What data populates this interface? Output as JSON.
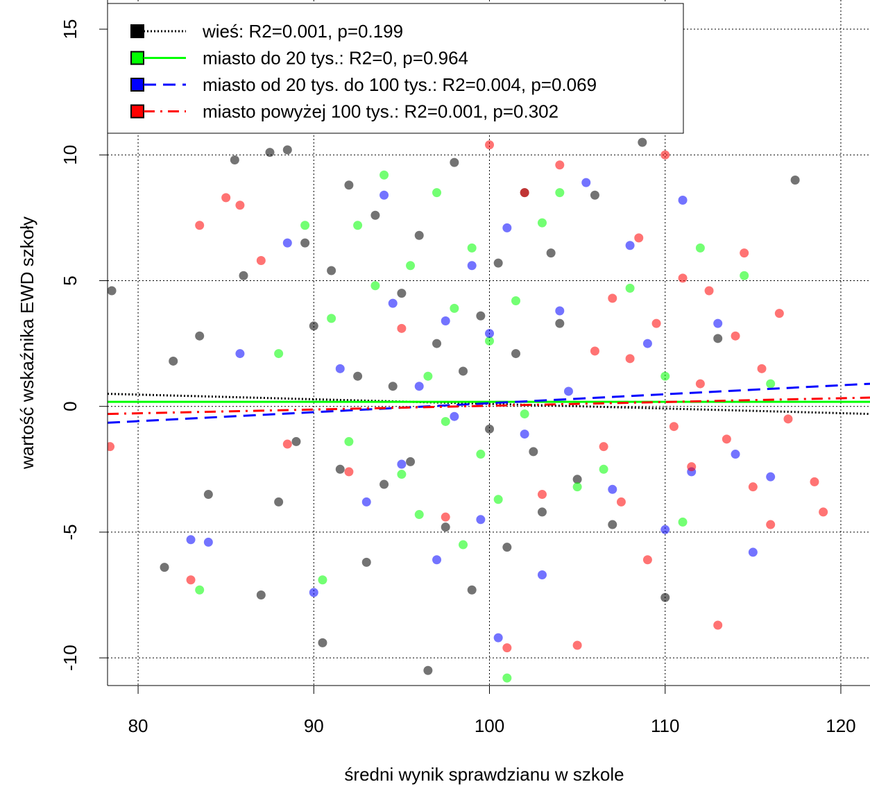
{
  "chart_data": {
    "type": "scatter",
    "xlabel": "średni wynik sprawdzianu w szkole",
    "ylabel": "wartość wskaźnika EWD szkoły",
    "xlim": [
      78.26,
      121.66
    ],
    "ylim": [
      -11.1,
      16.16
    ],
    "xticks": [
      80,
      90,
      100,
      110,
      120
    ],
    "yticks": [
      -10,
      -5,
      0,
      5,
      10,
      15
    ],
    "grid": true,
    "legend": "top-left",
    "series": [
      {
        "name": "wieś: R2=0.001, p=0.199",
        "color": "#000000",
        "line_style": "dotted",
        "x": [
          78.5,
          81.5,
          82,
          83.5,
          84,
          85.5,
          86,
          87,
          87.5,
          88,
          88.5,
          89,
          89.5,
          90,
          90.5,
          91,
          91.5,
          92,
          92.5,
          93,
          93.5,
          94,
          94.5,
          95,
          95.5,
          96,
          96.5,
          97,
          97.5,
          98,
          98.5,
          99,
          99.5,
          100,
          100.5,
          101,
          101.5,
          102,
          102.5,
          103,
          103.5,
          104,
          105,
          106,
          107,
          108.7,
          110,
          113,
          117.4
        ],
        "values": [
          4.6,
          -6.4,
          1.8,
          2.8,
          -3.5,
          9.8,
          5.2,
          -7.5,
          10.1,
          -3.8,
          10.2,
          -1.4,
          6.5,
          3.2,
          -9.4,
          5.4,
          -2.5,
          8.8,
          1.2,
          -6.2,
          7.6,
          -3.1,
          0.8,
          4.5,
          -2.2,
          6.8,
          -10.5,
          2.5,
          -4.8,
          9.7,
          1.4,
          -7.3,
          3.6,
          -0.9,
          5.7,
          -5.6,
          2.1,
          8.5,
          -1.8,
          -4.2,
          6.1,
          3.3,
          -2.9,
          8.4,
          -4.7,
          10.5,
          -7.6,
          2.7,
          9.0
        ],
        "fit": {
          "x": [
            78.26,
            121.66
          ],
          "y": [
            0.5,
            -0.3
          ]
        }
      },
      {
        "name": "miasto do 20 tys.: R2=0, p=0.964",
        "color": "#00ff00",
        "line_style": "solid",
        "x": [
          83.5,
          88,
          89.5,
          90.5,
          91,
          92,
          92.5,
          93.5,
          94,
          95,
          95.5,
          96,
          96.5,
          97,
          97.5,
          98,
          98.5,
          99,
          99.5,
          100,
          100.5,
          101,
          101.5,
          102,
          103,
          104,
          105,
          106.5,
          108,
          110,
          111,
          112,
          114.5,
          116
        ],
        "values": [
          -7.3,
          2.1,
          7.2,
          -6.9,
          3.5,
          -1.4,
          7.2,
          4.8,
          9.2,
          -2.7,
          5.6,
          -4.3,
          1.2,
          8.5,
          -0.6,
          3.9,
          -5.5,
          6.3,
          -1.9,
          2.6,
          -3.7,
          -10.8,
          4.2,
          -0.3,
          7.3,
          8.5,
          -3.2,
          -2.5,
          4.7,
          1.2,
          -4.6,
          6.3,
          5.2,
          0.9
        ],
        "fit": {
          "x": [
            78.26,
            121.66
          ],
          "y": [
            0.18,
            0.18
          ]
        }
      },
      {
        "name": "miasto od 20 tys. do 100 tys.: R2=0.004, p=0.069",
        "color": "#0000ff",
        "line_style": "dashed",
        "x": [
          83,
          84,
          85.8,
          88.5,
          90,
          91.5,
          93,
          94,
          94.5,
          95,
          96,
          97,
          97.5,
          98,
          99,
          99.5,
          100,
          100.5,
          101,
          102,
          103,
          104,
          104.5,
          105.5,
          107,
          108,
          109,
          110,
          111,
          111.5,
          113,
          114,
          115,
          116
        ],
        "values": [
          -5.3,
          -5.4,
          2.1,
          6.5,
          -7.4,
          1.5,
          -3.8,
          8.4,
          4.1,
          -2.3,
          0.8,
          -6.1,
          3.4,
          -0.4,
          5.6,
          -4.5,
          2.9,
          -9.2,
          7.1,
          -1.1,
          -6.7,
          3.8,
          0.6,
          8.9,
          -3.3,
          6.4,
          2.5,
          -4.9,
          8.2,
          -2.6,
          3.3,
          -1.9,
          -5.8,
          -2.8
        ],
        "fit": {
          "x": [
            78.26,
            121.66
          ],
          "y": [
            -0.65,
            0.9
          ]
        }
      },
      {
        "name": "miasto powyżej 100 tys.: R2=0.001, p=0.302",
        "color": "#ff0000",
        "line_style": "dashdot",
        "x": [
          78.4,
          83,
          83.5,
          85,
          85.8,
          87,
          88.5,
          92,
          95,
          97.5,
          100,
          101,
          102,
          103,
          104,
          105,
          106,
          106.5,
          107,
          107.5,
          108,
          108.5,
          109,
          109.5,
          110,
          110.5,
          111,
          111.5,
          112,
          112.5,
          113,
          113.5,
          114,
          114.5,
          115,
          115.5,
          116,
          116.5,
          117,
          118.5,
          119
        ],
        "values": [
          -1.6,
          -6.9,
          7.2,
          8.3,
          8.0,
          5.8,
          -1.5,
          -2.6,
          3.1,
          -4.4,
          10.4,
          -9.6,
          8.5,
          -3.5,
          9.6,
          -9.5,
          2.2,
          -1.6,
          4.3,
          -3.8,
          1.9,
          6.7,
          -6.1,
          3.3,
          10.0,
          -0.8,
          5.1,
          -2.4,
          0.9,
          4.6,
          -8.7,
          -1.3,
          2.8,
          6.1,
          -3.2,
          1.5,
          -4.7,
          3.7,
          -0.5,
          -3.0,
          -4.2
        ],
        "fit": {
          "x": [
            78.26,
            121.66
          ],
          "y": [
            -0.3,
            0.35
          ]
        }
      }
    ]
  }
}
